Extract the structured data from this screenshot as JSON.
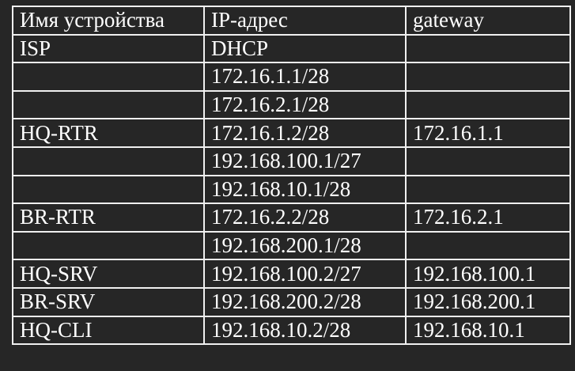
{
  "table": {
    "headers": [
      "Имя устройства",
      "IP-адрес",
      "gateway"
    ],
    "rows": [
      [
        "ISP",
        "DHCP",
        ""
      ],
      [
        "",
        "172.16.1.1/28",
        ""
      ],
      [
        "",
        "172.16.2.1/28",
        ""
      ],
      [
        "HQ-RTR",
        "172.16.1.2/28",
        "172.16.1.1"
      ],
      [
        "",
        "192.168.100.1/27",
        ""
      ],
      [
        "",
        "192.168.10.1/28",
        ""
      ],
      [
        "BR-RTR",
        "172.16.2.2/28",
        "172.16.2.1"
      ],
      [
        "",
        "192.168.200.1/28",
        ""
      ],
      [
        "HQ-SRV",
        "192.168.100.2/27",
        "192.168.100.1"
      ],
      [
        "BR-SRV",
        "192.168.200.2/28",
        "192.168.200.1"
      ],
      [
        "HQ-CLI",
        "192.168.10.2/28",
        "192.168.10.1"
      ]
    ]
  }
}
